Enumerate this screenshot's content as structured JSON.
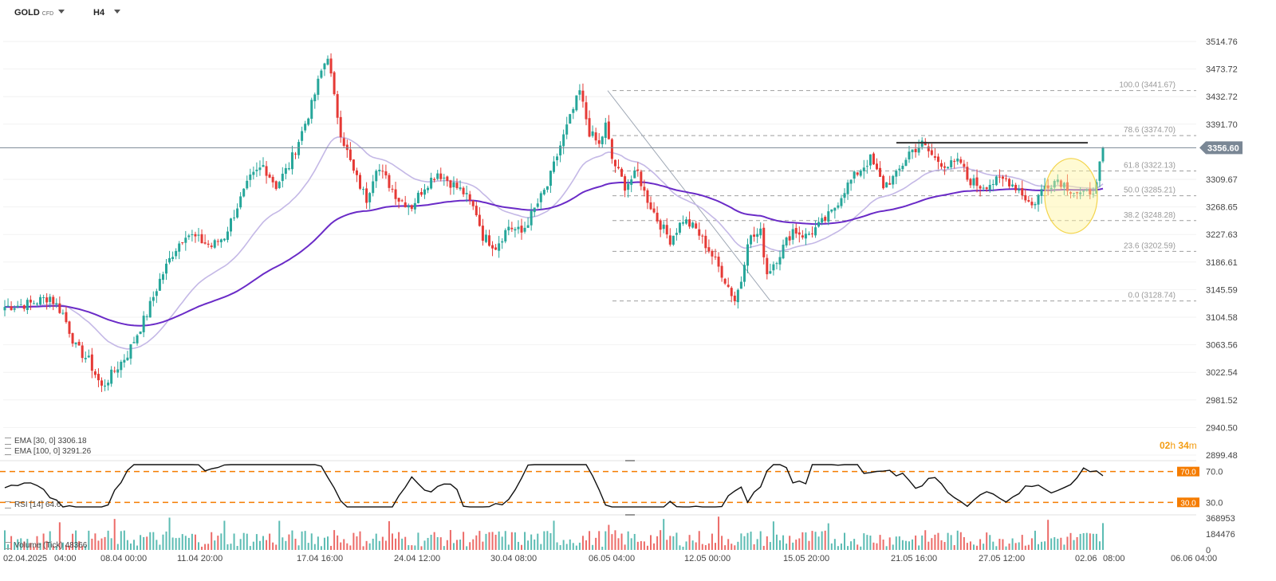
{
  "header": {
    "symbol": "GOLD",
    "symbol_type": "CFD",
    "timeframe": "H4"
  },
  "legend": {
    "ema30": "EMA [30, 0] 3306.18",
    "ema100": "EMA [100, 0] 3291.26",
    "rsi": "RSI [14] 64.6",
    "volume": "Volume (Tick) 48366"
  },
  "countdown": {
    "hours": "02",
    "h": "h",
    "minutes": "34",
    "m": "m"
  },
  "colors": {
    "up": "#26a69a",
    "down": "#e53935",
    "ema30": "#c4b8e6",
    "ema100": "#6a2bc7",
    "fib": "#9e9e9e",
    "rsi_band": "#f57c00",
    "price_tag": "#7a8795",
    "highlight": "#fff59d"
  },
  "chart_data": {
    "type": "candlestick",
    "symbol": "GOLD",
    "timeframe": "H4",
    "current_price": 3356.6,
    "price_axis_ticks": [
      3514.76,
      3473.72,
      3432.72,
      3391.7,
      3309.67,
      3268.65,
      3227.63,
      3186.61,
      3145.59,
      3104.58,
      3063.56,
      3022.54,
      2981.52,
      2940.5,
      2899.48
    ],
    "ylim": [
      2899.48,
      3514.76
    ],
    "x_ticks": [
      "02.04.2025",
      "04:00",
      "08.04 00:00",
      "11.04 20:00",
      "17.04 16:00",
      "24.04 12:00",
      "30.04 08:00",
      "06.05 04:00",
      "12.05 00:00",
      "15.05 20:00",
      "21.05 16:00",
      "27.05 12:00",
      "02.06",
      "08:00",
      "06.06 04:00"
    ],
    "fibonacci": [
      {
        "level": "100.0",
        "price": 3441.67,
        "label": "100.0 (3441.67)"
      },
      {
        "level": "78.6",
        "price": 3374.7,
        "label": "78.6 (3374.70)"
      },
      {
        "level": "61.8",
        "price": 3322.13,
        "label": "61.8 (3322.13)"
      },
      {
        "level": "50.0",
        "price": 3285.21,
        "label": "50.0 (3285.21)"
      },
      {
        "level": "38.2",
        "price": 3248.28,
        "label": "38.2 (3248.28)"
      },
      {
        "level": "23.6",
        "price": 3202.59,
        "label": "23.6 (3202.59)"
      },
      {
        "level": "0.0",
        "price": 3128.74,
        "label": "0.0 (3128.74)"
      }
    ],
    "resistance_price": 3364,
    "rsi": {
      "period": 14,
      "value": 64.6,
      "levels": [
        70.0,
        30.0
      ],
      "level_labels": [
        "70.0",
        "30.0"
      ],
      "axis_ticks": [
        "70.0",
        "30.0"
      ]
    },
    "volume": {
      "value": 48366,
      "axis_ticks": [
        "368953",
        "184476",
        "0"
      ]
    },
    "ema30_value": 3306.18,
    "ema100_value": 3291.26,
    "close_path": [
      [
        0,
        3120
      ],
      [
        8,
        3125
      ],
      [
        14,
        3135
      ],
      [
        18,
        3110
      ],
      [
        22,
        3060
      ],
      [
        26,
        3040
      ],
      [
        30,
        3000
      ],
      [
        34,
        3025
      ],
      [
        38,
        3050
      ],
      [
        40,
        3070
      ],
      [
        44,
        3110
      ],
      [
        48,
        3160
      ],
      [
        52,
        3200
      ],
      [
        56,
        3230
      ],
      [
        60,
        3220
      ],
      [
        64,
        3210
      ],
      [
        68,
        3225
      ],
      [
        72,
        3270
      ],
      [
        76,
        3310
      ],
      [
        80,
        3330
      ],
      [
        84,
        3300
      ],
      [
        88,
        3330
      ],
      [
        92,
        3380
      ],
      [
        95,
        3420
      ],
      [
        98,
        3470
      ],
      [
        100,
        3495
      ],
      [
        102,
        3430
      ],
      [
        104,
        3380
      ],
      [
        108,
        3320
      ],
      [
        112,
        3280
      ],
      [
        115,
        3330
      ],
      [
        118,
        3310
      ],
      [
        122,
        3280
      ],
      [
        126,
        3270
      ],
      [
        130,
        3300
      ],
      [
        134,
        3320
      ],
      [
        138,
        3305
      ],
      [
        142,
        3290
      ],
      [
        146,
        3260
      ],
      [
        148,
        3225
      ],
      [
        152,
        3210
      ],
      [
        156,
        3240
      ],
      [
        160,
        3230
      ],
      [
        164,
        3265
      ],
      [
        168,
        3300
      ],
      [
        172,
        3360
      ],
      [
        175,
        3400
      ],
      [
        178,
        3440
      ],
      [
        181,
        3380
      ],
      [
        184,
        3360
      ],
      [
        186,
        3390
      ],
      [
        188,
        3340
      ],
      [
        192,
        3300
      ],
      [
        196,
        3320
      ],
      [
        198,
        3290
      ],
      [
        202,
        3250
      ],
      [
        206,
        3220
      ],
      [
        210,
        3250
      ],
      [
        214,
        3235
      ],
      [
        218,
        3205
      ],
      [
        222,
        3170
      ],
      [
        226,
        3130
      ],
      [
        228,
        3160
      ],
      [
        230,
        3220
      ],
      [
        234,
        3230
      ],
      [
        236,
        3170
      ],
      [
        240,
        3200
      ],
      [
        244,
        3235
      ],
      [
        248,
        3225
      ],
      [
        252,
        3240
      ],
      [
        256,
        3260
      ],
      [
        260,
        3295
      ],
      [
        264,
        3320
      ],
      [
        268,
        3340
      ],
      [
        272,
        3300
      ],
      [
        276,
        3315
      ],
      [
        280,
        3350
      ],
      [
        284,
        3362
      ],
      [
        288,
        3340
      ],
      [
        292,
        3330
      ],
      [
        296,
        3335
      ],
      [
        298,
        3310
      ],
      [
        302,
        3300
      ],
      [
        306,
        3305
      ],
      [
        310,
        3310
      ],
      [
        314,
        3295
      ],
      [
        318,
        3270
      ],
      [
        322,
        3300
      ],
      [
        326,
        3310
      ],
      [
        330,
        3295
      ],
      [
        334,
        3285
      ],
      [
        338,
        3300
      ],
      [
        340,
        3356.6
      ]
    ]
  }
}
